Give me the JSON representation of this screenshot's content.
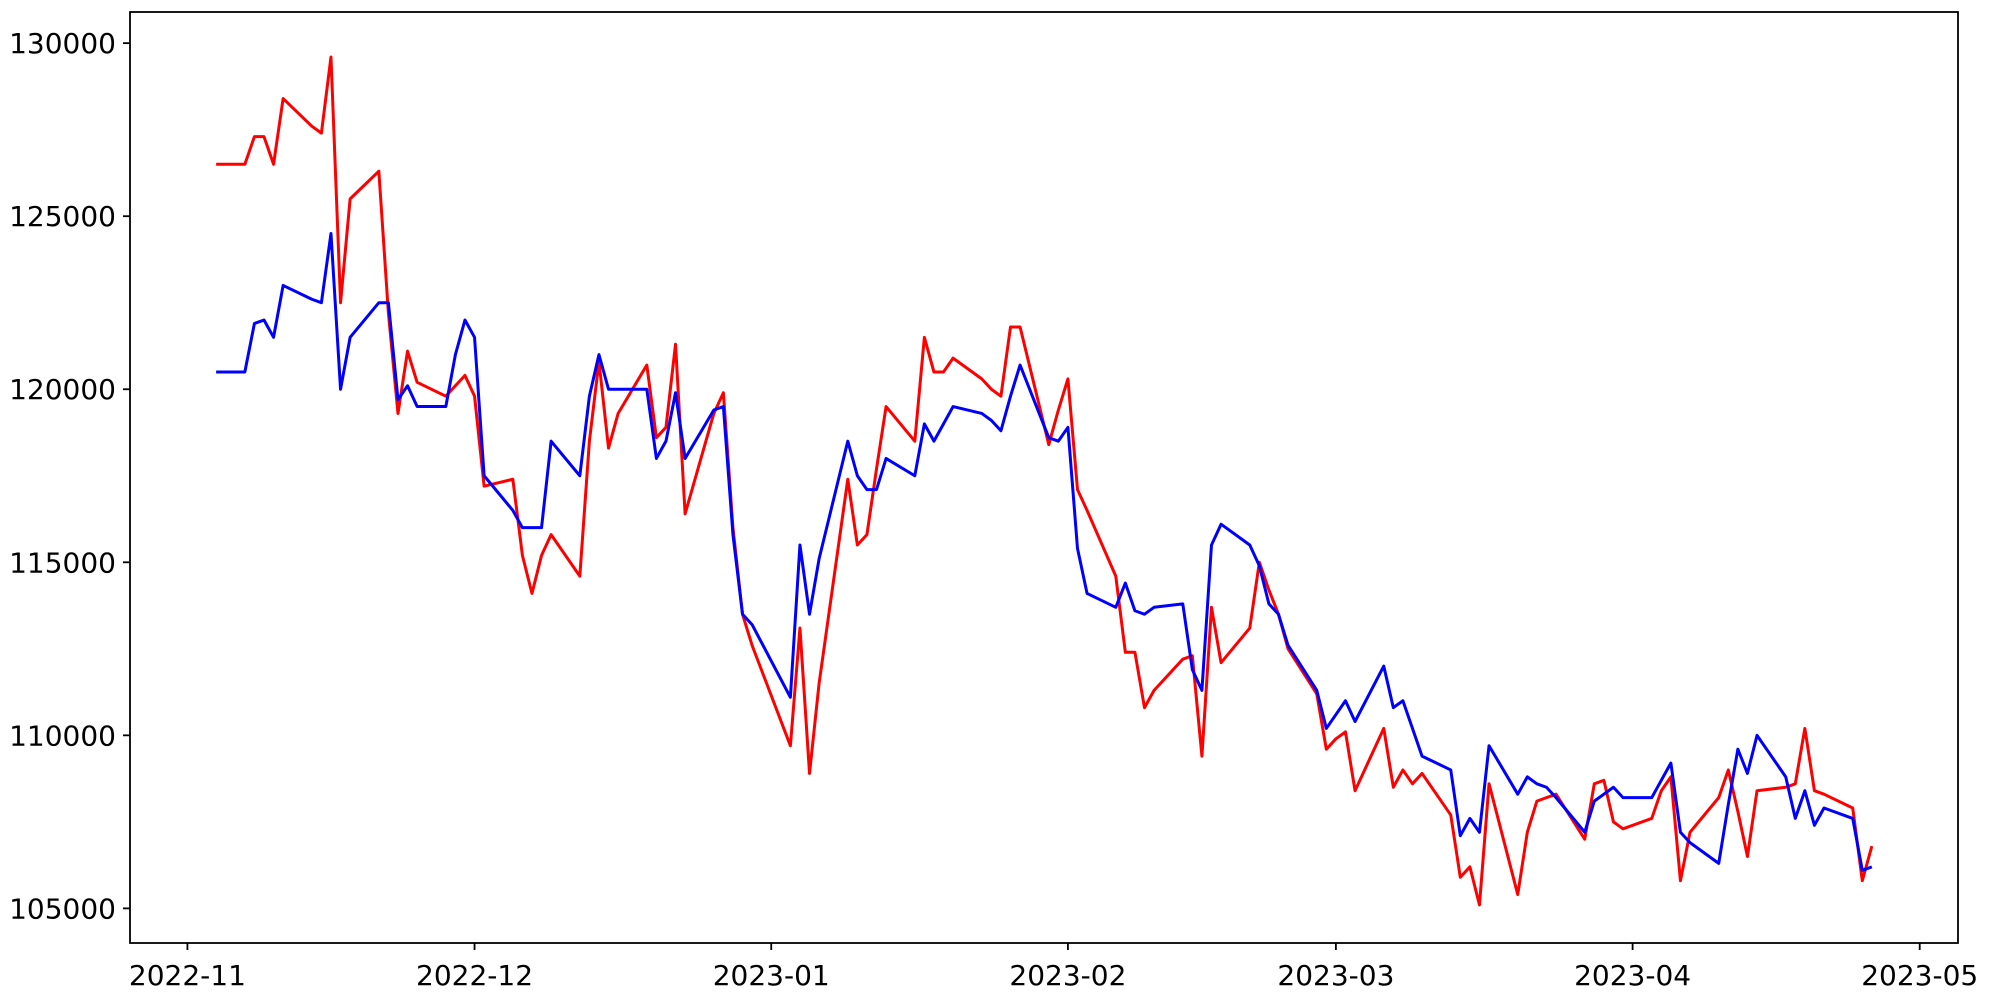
{
  "figure": {
    "background": "#ffffff",
    "axes_color": "#000000"
  },
  "chart_data": {
    "type": "line",
    "title": "",
    "xlabel": "",
    "ylabel": "",
    "grid": false,
    "legend": false,
    "x_axis": {
      "tick_labels": [
        "2022-11",
        "2022-12",
        "2023-01",
        "2023-02",
        "2023-03",
        "2023-04",
        "2023-05"
      ],
      "min_date": "2022-10-26",
      "max_date": "2023-05-05"
    },
    "y_axis": {
      "ticks": [
        105000,
        110000,
        115000,
        120000,
        125000,
        130000
      ],
      "min": 104000,
      "max": 130900
    },
    "series": [
      {
        "name": "red",
        "color": "#ff0000",
        "points": [
          [
            "2022-11-04",
            126500
          ],
          [
            "2022-11-07",
            126500
          ],
          [
            "2022-11-08",
            127300
          ],
          [
            "2022-11-09",
            127300
          ],
          [
            "2022-11-10",
            126500
          ],
          [
            "2022-11-11",
            128400
          ],
          [
            "2022-11-14",
            127600
          ],
          [
            "2022-11-15",
            127400
          ],
          [
            "2022-11-16",
            129600
          ],
          [
            "2022-11-17",
            122500
          ],
          [
            "2022-11-18",
            125500
          ],
          [
            "2022-11-21",
            126300
          ],
          [
            "2022-11-22",
            122200
          ],
          [
            "2022-11-23",
            119300
          ],
          [
            "2022-11-24",
            121100
          ],
          [
            "2022-11-25",
            120200
          ],
          [
            "2022-11-28",
            119800
          ],
          [
            "2022-11-29",
            120100
          ],
          [
            "2022-11-30",
            120400
          ],
          [
            "2022-12-01",
            119800
          ],
          [
            "2022-12-02",
            117200
          ],
          [
            "2022-12-05",
            117400
          ],
          [
            "2022-12-06",
            115200
          ],
          [
            "2022-12-07",
            114100
          ],
          [
            "2022-12-08",
            115200
          ],
          [
            "2022-12-09",
            115800
          ],
          [
            "2022-12-12",
            114600
          ],
          [
            "2022-12-13",
            118500
          ],
          [
            "2022-12-14",
            120800
          ],
          [
            "2022-12-15",
            118300
          ],
          [
            "2022-12-16",
            119300
          ],
          [
            "2022-12-19",
            120700
          ],
          [
            "2022-12-20",
            118600
          ],
          [
            "2022-12-21",
            118900
          ],
          [
            "2022-12-22",
            121300
          ],
          [
            "2022-12-23",
            116400
          ],
          [
            "2022-12-26",
            119300
          ],
          [
            "2022-12-27",
            119900
          ],
          [
            "2022-12-28",
            116000
          ],
          [
            "2022-12-29",
            113500
          ],
          [
            "2022-12-30",
            112600
          ],
          [
            "2023-01-03",
            109700
          ],
          [
            "2023-01-04",
            113100
          ],
          [
            "2023-01-05",
            108900
          ],
          [
            "2023-01-06",
            111500
          ],
          [
            "2023-01-09",
            117400
          ],
          [
            "2023-01-10",
            115500
          ],
          [
            "2023-01-11",
            115800
          ],
          [
            "2023-01-12",
            117700
          ],
          [
            "2023-01-13",
            119500
          ],
          [
            "2023-01-16",
            118500
          ],
          [
            "2023-01-17",
            121500
          ],
          [
            "2023-01-18",
            120500
          ],
          [
            "2023-01-19",
            120500
          ],
          [
            "2023-01-20",
            120900
          ],
          [
            "2023-01-23",
            120300
          ],
          [
            "2023-01-24",
            120000
          ],
          [
            "2023-01-25",
            119800
          ],
          [
            "2023-01-26",
            121800
          ],
          [
            "2023-01-27",
            121800
          ],
          [
            "2023-01-30",
            118400
          ],
          [
            "2023-01-31",
            119400
          ],
          [
            "2023-02-01",
            120300
          ],
          [
            "2023-02-02",
            117100
          ],
          [
            "2023-02-03",
            116500
          ],
          [
            "2023-02-06",
            114600
          ],
          [
            "2023-02-07",
            112400
          ],
          [
            "2023-02-08",
            112400
          ],
          [
            "2023-02-09",
            110800
          ],
          [
            "2023-02-10",
            111300
          ],
          [
            "2023-02-13",
            112200
          ],
          [
            "2023-02-14",
            112300
          ],
          [
            "2023-02-15",
            109400
          ],
          [
            "2023-02-16",
            113700
          ],
          [
            "2023-02-17",
            112100
          ],
          [
            "2023-02-20",
            113100
          ],
          [
            "2023-02-21",
            115000
          ],
          [
            "2023-02-22",
            114200
          ],
          [
            "2023-02-23",
            113500
          ],
          [
            "2023-02-24",
            112500
          ],
          [
            "2023-02-27",
            111200
          ],
          [
            "2023-02-28",
            109600
          ],
          [
            "2023-03-01",
            109900
          ],
          [
            "2023-03-02",
            110100
          ],
          [
            "2023-03-03",
            108400
          ],
          [
            "2023-03-06",
            110200
          ],
          [
            "2023-03-07",
            108500
          ],
          [
            "2023-03-08",
            109000
          ],
          [
            "2023-03-09",
            108600
          ],
          [
            "2023-03-10",
            108900
          ],
          [
            "2023-03-13",
            107700
          ],
          [
            "2023-03-14",
            105900
          ],
          [
            "2023-03-15",
            106200
          ],
          [
            "2023-03-16",
            105100
          ],
          [
            "2023-03-17",
            108600
          ],
          [
            "2023-03-20",
            105400
          ],
          [
            "2023-03-21",
            107200
          ],
          [
            "2023-03-22",
            108100
          ],
          [
            "2023-03-23",
            108200
          ],
          [
            "2023-03-24",
            108300
          ],
          [
            "2023-03-27",
            107000
          ],
          [
            "2023-03-28",
            108600
          ],
          [
            "2023-03-29",
            108700
          ],
          [
            "2023-03-30",
            107500
          ],
          [
            "2023-03-31",
            107300
          ],
          [
            "2023-04-03",
            107600
          ],
          [
            "2023-04-04",
            108400
          ],
          [
            "2023-04-05",
            108800
          ],
          [
            "2023-04-06",
            105800
          ],
          [
            "2023-04-07",
            107200
          ],
          [
            "2023-04-10",
            108200
          ],
          [
            "2023-04-11",
            109000
          ],
          [
            "2023-04-12",
            107800
          ],
          [
            "2023-04-13",
            106500
          ],
          [
            "2023-04-14",
            108400
          ],
          [
            "2023-04-17",
            108500
          ],
          [
            "2023-04-18",
            108600
          ],
          [
            "2023-04-19",
            110200
          ],
          [
            "2023-04-20",
            108400
          ],
          [
            "2023-04-21",
            108300
          ],
          [
            "2023-04-24",
            107900
          ],
          [
            "2023-04-25",
            105800
          ],
          [
            "2023-04-26",
            106800
          ]
        ]
      },
      {
        "name": "blue",
        "color": "#0000ff",
        "points": [
          [
            "2022-11-04",
            120500
          ],
          [
            "2022-11-07",
            120500
          ],
          [
            "2022-11-08",
            121900
          ],
          [
            "2022-11-09",
            122000
          ],
          [
            "2022-11-10",
            121500
          ],
          [
            "2022-11-11",
            123000
          ],
          [
            "2022-11-14",
            122600
          ],
          [
            "2022-11-15",
            122500
          ],
          [
            "2022-11-16",
            124500
          ],
          [
            "2022-11-17",
            120000
          ],
          [
            "2022-11-18",
            121500
          ],
          [
            "2022-11-21",
            122500
          ],
          [
            "2022-11-22",
            122500
          ],
          [
            "2022-11-23",
            119700
          ],
          [
            "2022-11-24",
            120100
          ],
          [
            "2022-11-25",
            119500
          ],
          [
            "2022-11-28",
            119500
          ],
          [
            "2022-11-29",
            121000
          ],
          [
            "2022-11-30",
            122000
          ],
          [
            "2022-12-01",
            121500
          ],
          [
            "2022-12-02",
            117500
          ],
          [
            "2022-12-05",
            116500
          ],
          [
            "2022-12-06",
            116000
          ],
          [
            "2022-12-07",
            116000
          ],
          [
            "2022-12-08",
            116000
          ],
          [
            "2022-12-09",
            118500
          ],
          [
            "2022-12-12",
            117500
          ],
          [
            "2022-12-13",
            119800
          ],
          [
            "2022-12-14",
            121000
          ],
          [
            "2022-12-15",
            120000
          ],
          [
            "2022-12-16",
            120000
          ],
          [
            "2022-12-19",
            120000
          ],
          [
            "2022-12-20",
            118000
          ],
          [
            "2022-12-21",
            118500
          ],
          [
            "2022-12-22",
            119900
          ],
          [
            "2022-12-23",
            118000
          ],
          [
            "2022-12-26",
            119400
          ],
          [
            "2022-12-27",
            119500
          ],
          [
            "2022-12-28",
            115800
          ],
          [
            "2022-12-29",
            113500
          ],
          [
            "2022-12-30",
            113200
          ],
          [
            "2023-01-03",
            111100
          ],
          [
            "2023-01-04",
            115500
          ],
          [
            "2023-01-05",
            113500
          ],
          [
            "2023-01-06",
            115100
          ],
          [
            "2023-01-09",
            118500
          ],
          [
            "2023-01-10",
            117500
          ],
          [
            "2023-01-11",
            117100
          ],
          [
            "2023-01-12",
            117100
          ],
          [
            "2023-01-13",
            118000
          ],
          [
            "2023-01-16",
            117500
          ],
          [
            "2023-01-17",
            119000
          ],
          [
            "2023-01-18",
            118500
          ],
          [
            "2023-01-19",
            119000
          ],
          [
            "2023-01-20",
            119500
          ],
          [
            "2023-01-23",
            119300
          ],
          [
            "2023-01-24",
            119100
          ],
          [
            "2023-01-25",
            118800
          ],
          [
            "2023-01-26",
            119800
          ],
          [
            "2023-01-27",
            120700
          ],
          [
            "2023-01-30",
            118600
          ],
          [
            "2023-01-31",
            118500
          ],
          [
            "2023-02-01",
            118900
          ],
          [
            "2023-02-02",
            115400
          ],
          [
            "2023-02-03",
            114100
          ],
          [
            "2023-02-06",
            113700
          ],
          [
            "2023-02-07",
            114400
          ],
          [
            "2023-02-08",
            113600
          ],
          [
            "2023-02-09",
            113500
          ],
          [
            "2023-02-10",
            113700
          ],
          [
            "2023-02-13",
            113800
          ],
          [
            "2023-02-14",
            111900
          ],
          [
            "2023-02-15",
            111300
          ],
          [
            "2023-02-16",
            115500
          ],
          [
            "2023-02-17",
            116100
          ],
          [
            "2023-02-20",
            115500
          ],
          [
            "2023-02-21",
            114900
          ],
          [
            "2023-02-22",
            113800
          ],
          [
            "2023-02-23",
            113500
          ],
          [
            "2023-02-24",
            112600
          ],
          [
            "2023-02-27",
            111300
          ],
          [
            "2023-02-28",
            110200
          ],
          [
            "2023-03-01",
            110600
          ],
          [
            "2023-03-02",
            111000
          ],
          [
            "2023-03-03",
            110400
          ],
          [
            "2023-03-06",
            112000
          ],
          [
            "2023-03-07",
            110800
          ],
          [
            "2023-03-08",
            111000
          ],
          [
            "2023-03-09",
            110200
          ],
          [
            "2023-03-10",
            109400
          ],
          [
            "2023-03-13",
            109000
          ],
          [
            "2023-03-14",
            107100
          ],
          [
            "2023-03-15",
            107600
          ],
          [
            "2023-03-16",
            107200
          ],
          [
            "2023-03-17",
            109700
          ],
          [
            "2023-03-20",
            108300
          ],
          [
            "2023-03-21",
            108800
          ],
          [
            "2023-03-22",
            108600
          ],
          [
            "2023-03-23",
            108500
          ],
          [
            "2023-03-24",
            108200
          ],
          [
            "2023-03-27",
            107200
          ],
          [
            "2023-03-28",
            108100
          ],
          [
            "2023-03-29",
            108300
          ],
          [
            "2023-03-30",
            108500
          ],
          [
            "2023-03-31",
            108200
          ],
          [
            "2023-04-03",
            108200
          ],
          [
            "2023-04-04",
            108700
          ],
          [
            "2023-04-05",
            109200
          ],
          [
            "2023-04-06",
            107200
          ],
          [
            "2023-04-07",
            106900
          ],
          [
            "2023-04-10",
            106300
          ],
          [
            "2023-04-11",
            108000
          ],
          [
            "2023-04-12",
            109600
          ],
          [
            "2023-04-13",
            108900
          ],
          [
            "2023-04-14",
            110000
          ],
          [
            "2023-04-17",
            108800
          ],
          [
            "2023-04-18",
            107600
          ],
          [
            "2023-04-19",
            108400
          ],
          [
            "2023-04-20",
            107400
          ],
          [
            "2023-04-21",
            107900
          ],
          [
            "2023-04-24",
            107600
          ],
          [
            "2023-04-25",
            106100
          ],
          [
            "2023-04-26",
            106200
          ]
        ]
      }
    ]
  }
}
